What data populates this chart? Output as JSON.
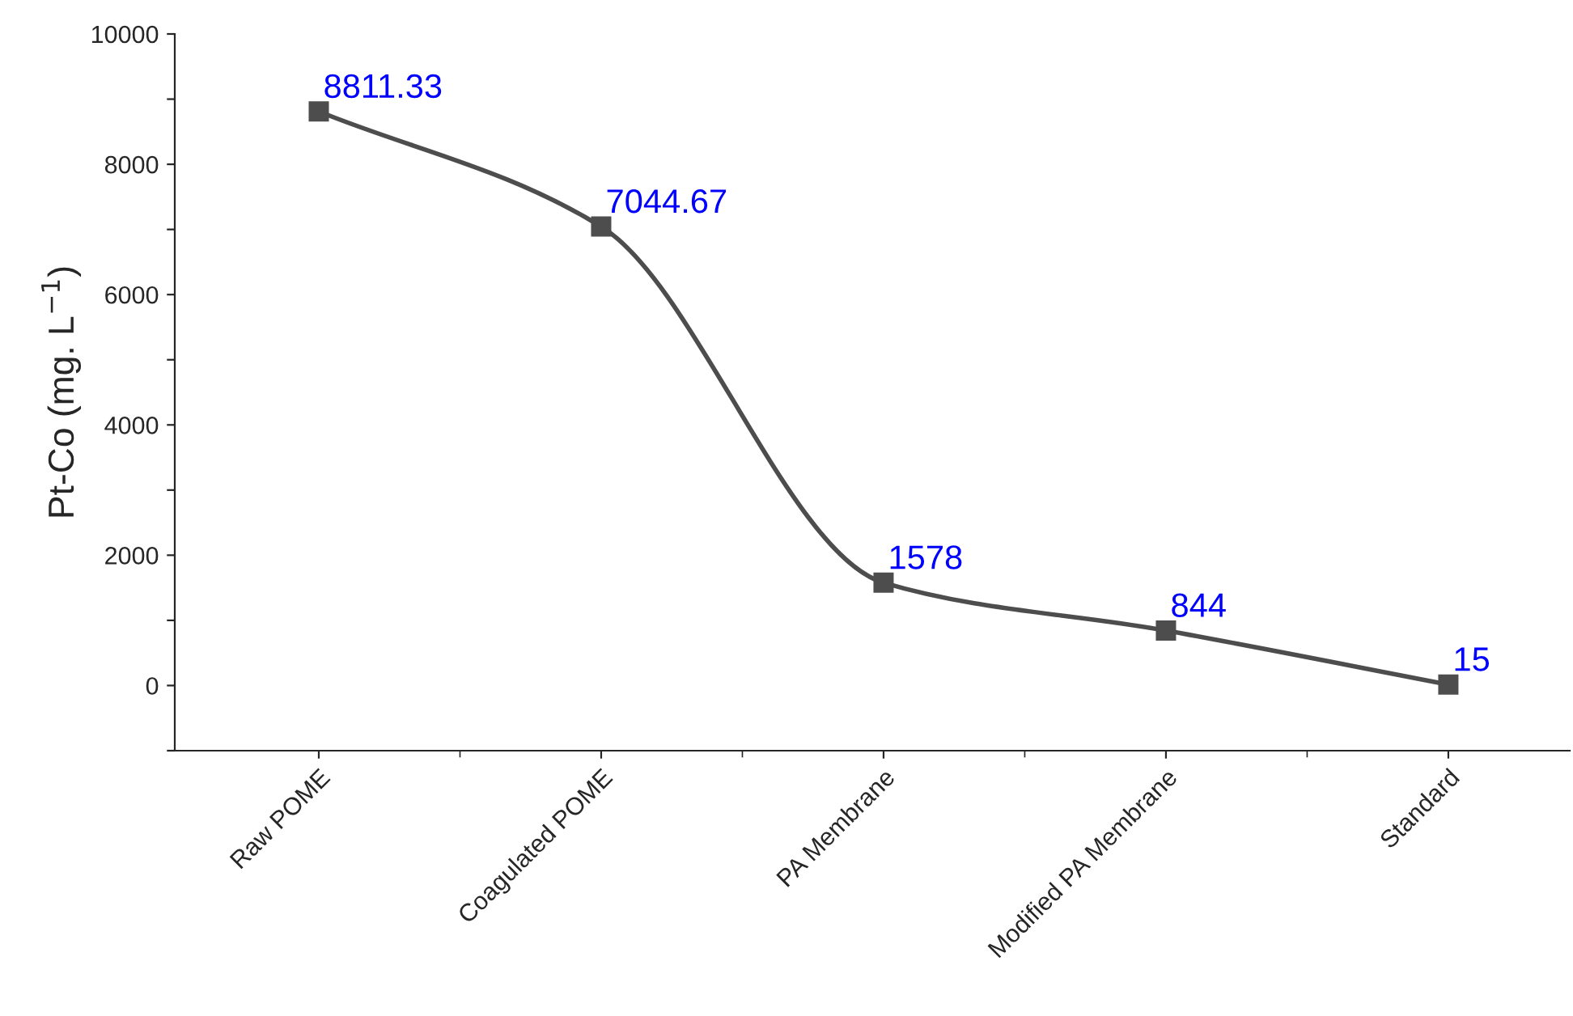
{
  "chart_data": {
    "type": "line",
    "ylabel": "Pt-Co (mg. L$^{−1}$)",
    "categories": [
      "Raw POME",
      "Coagulated POME",
      "PA Membrane",
      "Modified PA Membrane",
      "Standard"
    ],
    "series": [
      {
        "color": "#4d4d4d",
        "values": [
          8811.33,
          7044.67,
          1578,
          844,
          15
        ]
      }
    ],
    "ylim": [
      -1000,
      10000
    ],
    "yticks": [
      {
        "value": -1000,
        "label": null
      },
      0,
      {
        "value": 1000,
        "label": null
      },
      2000,
      {
        "value": 3000,
        "label": null
      },
      4000,
      {
        "value": 5000,
        "label": null
      },
      6000,
      {
        "value": 7000,
        "label": null
      },
      8000,
      {
        "value": 9000,
        "label": null
      },
      10000
    ],
    "data_labels": true,
    "marker": "square",
    "line_style": "solid",
    "grid": false,
    "legend": false
  }
}
